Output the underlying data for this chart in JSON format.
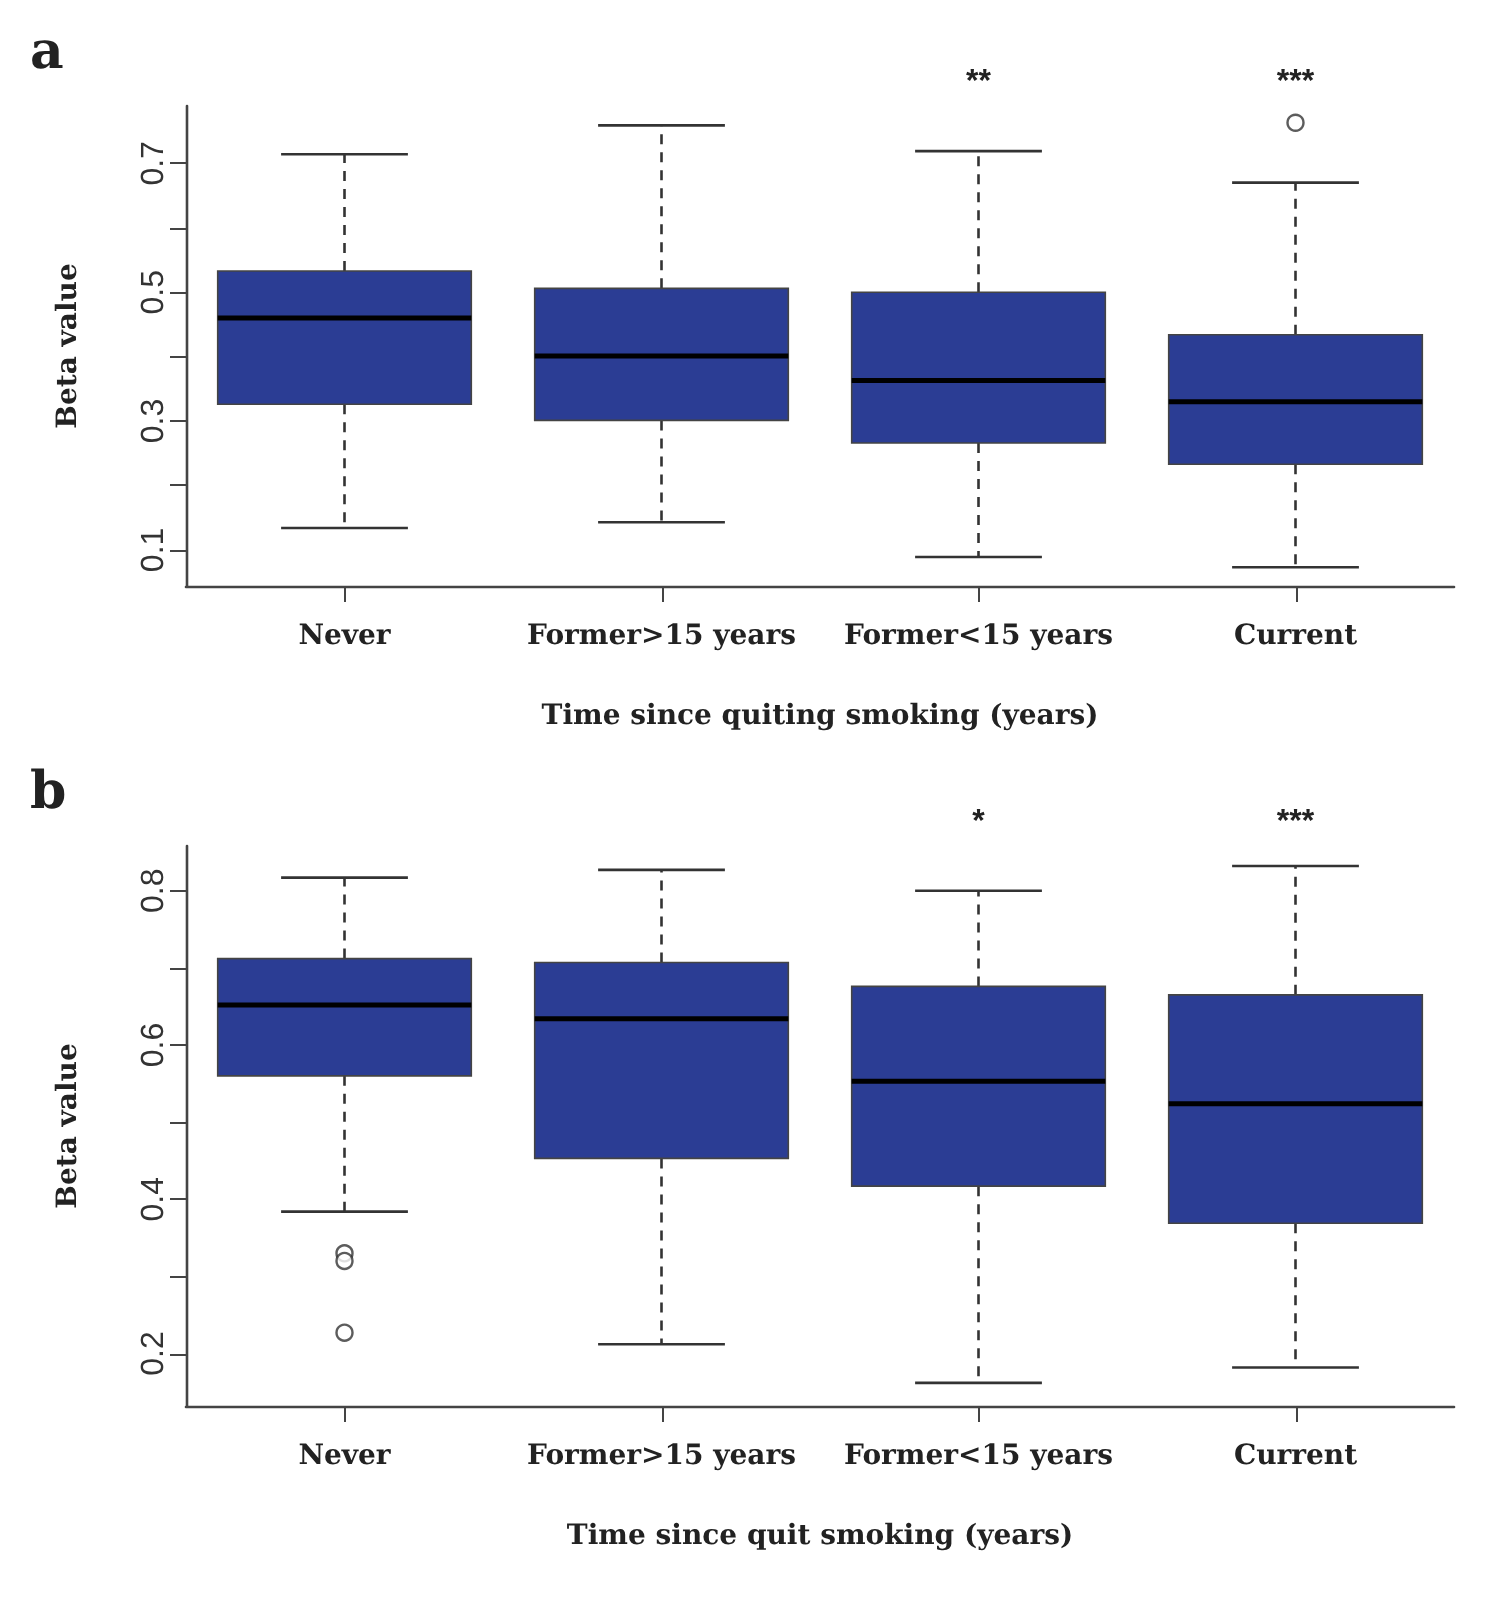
{
  "chart_data": [
    {
      "type": "box",
      "title": "a",
      "xlabel": "Time since quiting smoking (years)",
      "ylabel": "Beta value",
      "categories": [
        "Never",
        "Former>15 years",
        "Former<15 years",
        "Current"
      ],
      "series": [
        {
          "color": "#2b3d94",
          "boxes": [
            {
              "low": 0.134,
              "q1": 0.326,
              "median": 0.46,
              "q3": 0.533,
              "high": 0.714
            },
            {
              "low": 0.143,
              "q1": 0.301,
              "median": 0.401,
              "q3": 0.506,
              "high": 0.759
            },
            {
              "low": 0.089,
              "q1": 0.266,
              "median": 0.363,
              "q3": 0.5,
              "high": 0.719
            },
            {
              "low": 0.073,
              "q1": 0.233,
              "median": 0.33,
              "q3": 0.434,
              "high": 0.67,
              "outliers": [
                0.763
              ]
            }
          ]
        }
      ],
      "ylim": [
        0.044,
        0.789
      ],
      "yticks": [
        0.1,
        {
          "value": 0.2,
          "label": null
        },
        0.3,
        {
          "value": 0.4,
          "label": null
        },
        0.5,
        {
          "value": 0.6,
          "label": null
        },
        0.7
      ],
      "grid": false,
      "annotations": [
        "**",
        "***"
      ]
    },
    {
      "type": "box",
      "title": "b",
      "xlabel": "Time since quit smoking (years)",
      "ylabel": "Beta value",
      "categories": [
        "Never",
        "Former>15 years",
        "Former<15 years",
        "Current"
      ],
      "series": [
        {
          "color": "#2b3d94",
          "boxes": [
            {
              "low": 0.384,
              "q1": 0.56,
              "median": 0.652,
              "q3": 0.712,
              "high": 0.817,
              "outliers": [
                0.33,
                0.32,
                0.227
              ]
            },
            {
              "low": 0.212,
              "q1": 0.453,
              "median": 0.634,
              "q3": 0.707,
              "high": 0.827
            },
            {
              "low": 0.162,
              "q1": 0.417,
              "median": 0.553,
              "q3": 0.676,
              "high": 0.8
            },
            {
              "low": 0.182,
              "q1": 0.369,
              "median": 0.524,
              "q3": 0.665,
              "high": 0.832
            }
          ]
        }
      ],
      "ylim": [
        0.132,
        0.858
      ],
      "yticks": [
        0.2,
        {
          "value": 0.3,
          "label": null
        },
        0.4,
        {
          "value": 0.5,
          "label": null
        },
        0.6,
        {
          "value": 0.7,
          "label": null
        },
        0.8
      ],
      "grid": false,
      "annotations": [
        "*",
        "***"
      ]
    }
  ]
}
